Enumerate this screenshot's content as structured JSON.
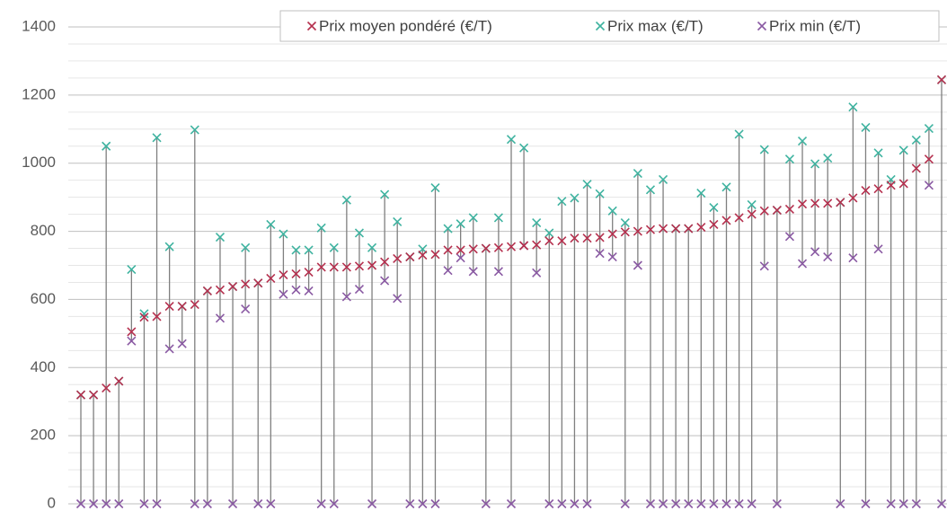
{
  "chart_data": {
    "type": "range-markers",
    "ylim": [
      0,
      1400
    ],
    "yticks": [
      0,
      200,
      400,
      600,
      800,
      1000,
      1200,
      1400
    ],
    "grid": true,
    "minor_grid": true,
    "legend": "top-right",
    "range_color": "#7f7f7f",
    "series": [
      {
        "name": "Prix moyen pondéré (€/T)",
        "color": "#b5304e",
        "values": [
          320,
          320,
          340,
          360,
          505,
          548,
          550,
          580,
          580,
          585,
          625,
          628,
          638,
          645,
          648,
          662,
          672,
          675,
          680,
          695,
          695,
          695,
          698,
          700,
          710,
          720,
          725,
          730,
          732,
          745,
          745,
          748,
          750,
          752,
          755,
          758,
          760,
          772,
          772,
          780,
          780,
          782,
          792,
          798,
          800,
          805,
          808,
          808,
          808,
          812,
          820,
          832,
          840,
          850,
          860,
          862,
          865,
          880,
          882,
          882,
          885,
          898,
          920,
          925,
          935,
          940,
          985,
          1012,
          1245
        ]
      },
      {
        "name": "Prix max (€/T)",
        "color": "#3fb3a0",
        "values": [
          320,
          320,
          1050,
          360,
          688,
          558,
          1075,
          755,
          580,
          1098,
          625,
          783,
          638,
          752,
          648,
          820,
          792,
          745,
          745,
          810,
          752,
          892,
          795,
          752,
          908,
          828,
          725,
          748,
          928,
          808,
          822,
          840,
          750,
          840,
          1070,
          1045,
          825,
          795,
          888,
          898,
          938,
          910,
          860,
          825,
          970,
          922,
          952,
          808,
          808,
          912,
          870,
          930,
          1085,
          878,
          1040,
          862,
          1012,
          1065,
          998,
          1015,
          885,
          1165,
          1105,
          1030,
          952,
          1038,
          1068,
          1102,
          1245
        ]
      },
      {
        "name": "Prix min (€/T)",
        "color": "#8a5aa3",
        "values": [
          0,
          0,
          0,
          0,
          478,
          0,
          0,
          455,
          470,
          0,
          0,
          545,
          0,
          572,
          0,
          0,
          615,
          628,
          625,
          0,
          0,
          608,
          630,
          0,
          655,
          603,
          0,
          0,
          0,
          685,
          722,
          682,
          0,
          682,
          0,
          758,
          678,
          0,
          0,
          0,
          0,
          735,
          725,
          0,
          700,
          0,
          0,
          0,
          0,
          0,
          0,
          0,
          0,
          0,
          698,
          0,
          785,
          705,
          740,
          725,
          0,
          722,
          0,
          748,
          0,
          0,
          0,
          935,
          0
        ]
      }
    ]
  }
}
